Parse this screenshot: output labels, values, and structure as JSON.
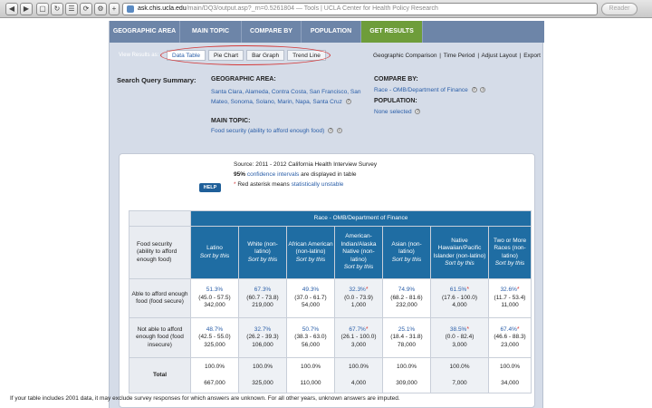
{
  "browser": {
    "url_host": "ask.chis.ucla.edu",
    "url_path": "/main/DQ3/output.asp?_rn=0.5261804",
    "url_title": " — Tools | UCLA Center for Health Policy Research",
    "reader_label": "Reader"
  },
  "nav": {
    "tabs": [
      {
        "label": "GEOGRAPHIC AREA"
      },
      {
        "label": "MAIN TOPIC"
      },
      {
        "label": "COMPARE BY"
      },
      {
        "label": "POPULATION"
      },
      {
        "label": "GET RESULTS"
      }
    ]
  },
  "view_bar": {
    "label": "View Results as:",
    "tabs": [
      "Data Table",
      "Pie Chart",
      "Bar Graph",
      "Trend Line"
    ],
    "links": [
      "Geographic Comparison",
      "Time Period",
      "Adjust Layout",
      "Export"
    ]
  },
  "summary": {
    "title": "Search Query Summary:",
    "geo_heading": "GEOGRAPHIC AREA:",
    "geo_value": "Santa Clara, Alameda, Contra Costa, San Francisco, San Mateo, Sonoma, Solano, Marin, Napa, Santa Cruz",
    "topic_heading": "MAIN TOPIC:",
    "topic_value": "Food security (ability to afford enough food)",
    "compare_heading": "COMPARE BY:",
    "compare_value": "Race - OMB/Department of Finance",
    "population_heading": "POPULATION:",
    "population_value": "None selected"
  },
  "results": {
    "source": "Source: 2011 - 2012 California Health Interview Survey",
    "ci_bold": "95%",
    "ci_link": "confidence intervals",
    "ci_rest": " are displayed in table",
    "asterisk_text": "Red asterisk means ",
    "asterisk_link": "statistically unstable",
    "help_label": "HELP"
  },
  "table": {
    "group_header": "Race - OMB/Department of Finance",
    "corner_label": "Food security (ability to afford enough food)",
    "columns": [
      {
        "name": "Latino",
        "sort": "Sort by this"
      },
      {
        "name": "White (non-latino)",
        "sort": "Sort by this"
      },
      {
        "name": "African American (non-latino)",
        "sort": "Sort by this"
      },
      {
        "name": "American-Indian/Alaska Native (non-latino)",
        "sort": "Sort by this"
      },
      {
        "name": "Asian (non-latino)",
        "sort": "Sort by this"
      },
      {
        "name": "Native Hawaiian/Pacific Islander (non-latino)",
        "sort": "Sort by this"
      },
      {
        "name": "Two or More Races (non-latino)",
        "sort": "Sort by this"
      }
    ],
    "rows": [
      {
        "label": "Able to afford enough food (food secure)",
        "cells": [
          {
            "pct": "51.3%",
            "ci": "(45.0 - 57.5)",
            "n": "342,000",
            "star": ""
          },
          {
            "pct": "67.3%",
            "ci": "(60.7 - 73.8)",
            "n": "219,000",
            "star": ""
          },
          {
            "pct": "49.3%",
            "ci": "(37.0 - 61.7)",
            "n": "54,000",
            "star": ""
          },
          {
            "pct": "32.3%",
            "ci": "(0.0 - 73.9)",
            "n": "1,000",
            "star": "*"
          },
          {
            "pct": "74.9%",
            "ci": "(68.2 - 81.6)",
            "n": "232,000",
            "star": ""
          },
          {
            "pct": "61.5%",
            "ci": "(17.6 - 100.0)",
            "n": "4,000",
            "star": "*"
          },
          {
            "pct": "32.6%",
            "ci": "(11.7 - 53.4)",
            "n": "11,000",
            "star": "*"
          }
        ]
      },
      {
        "label": "Not able to afford enough food (food insecure)",
        "cells": [
          {
            "pct": "48.7%",
            "ci": "(42.5 - 55.0)",
            "n": "325,000",
            "star": ""
          },
          {
            "pct": "32.7%",
            "ci": "(26.2 - 39.3)",
            "n": "106,000",
            "star": ""
          },
          {
            "pct": "50.7%",
            "ci": "(38.3 - 63.0)",
            "n": "56,000",
            "star": ""
          },
          {
            "pct": "67.7%",
            "ci": "(26.1 - 100.0)",
            "n": "3,000",
            "star": "*"
          },
          {
            "pct": "25.1%",
            "ci": "(18.4 - 31.8)",
            "n": "78,000",
            "star": ""
          },
          {
            "pct": "38.5%",
            "ci": "(0.0 - 82.4)",
            "n": "3,000",
            "star": "*"
          },
          {
            "pct": "67.4%",
            "ci": "(46.6 - 88.3)",
            "n": "23,000",
            "star": "*"
          }
        ]
      },
      {
        "label": "Total",
        "cells": [
          {
            "pct": "100.0%",
            "ci": "",
            "n": "667,000",
            "star": ""
          },
          {
            "pct": "100.0%",
            "ci": "",
            "n": "325,000",
            "star": ""
          },
          {
            "pct": "100.0%",
            "ci": "",
            "n": "110,000",
            "star": ""
          },
          {
            "pct": "100.0%",
            "ci": "",
            "n": "4,000",
            "star": ""
          },
          {
            "pct": "100.0%",
            "ci": "",
            "n": "309,000",
            "star": ""
          },
          {
            "pct": "100.0%",
            "ci": "",
            "n": "7,000",
            "star": ""
          },
          {
            "pct": "100.0%",
            "ci": "",
            "n": "34,000",
            "star": ""
          }
        ]
      }
    ]
  },
  "footnote": "If your table includes 2001 data, it may exclude survey responses for which answers are unknown. For all other years, unknown answers are imputed.",
  "colors": {
    "nav_bg": "#6d85a8",
    "active_tab": "#6e9d3a",
    "header_blue": "#1f6da3",
    "link_blue": "#2a5ea8",
    "asterisk_red": "#d43a3a"
  }
}
